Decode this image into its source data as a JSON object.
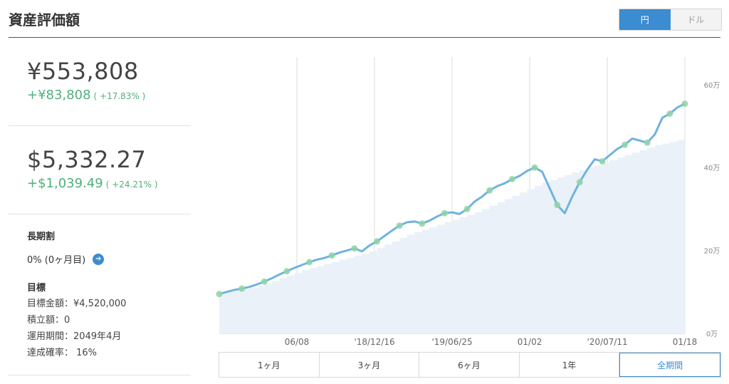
{
  "header": {
    "title": "資産評価額",
    "currency_options": [
      "円",
      "ドル"
    ],
    "active_currency": "円"
  },
  "jpy": {
    "value": "¥553,808",
    "gain": "+¥83,808",
    "gain_pct": "( +17.83% )"
  },
  "usd": {
    "value": "$5,332.27",
    "gain": "+$1,039.49",
    "gain_pct": "( +24.21% )"
  },
  "plan": {
    "long_term_heading": "長期割",
    "long_term_value": "0% (0ヶ月目)",
    "target_heading": "目標",
    "target_amount": "目標金額：¥4,520,000",
    "accumulation": "積立額：0",
    "period": "運用期間：2049年4月",
    "probability": "達成確率： 16%"
  },
  "range_tabs": [
    "1ヶ月",
    "3ヶ月",
    "6ヶ月",
    "1年",
    "全期間"
  ],
  "active_range": "全期間",
  "colors": {
    "accent": "#3b8cd0",
    "gain": "#4fb07a",
    "line": "#6fb3e0",
    "area": "#eaf1f9",
    "marker": "#8fd3a5"
  },
  "chart_data": {
    "type": "area",
    "x_ticks": [
      "06/08",
      "'18/12/16",
      "'19/06/25",
      "01/02",
      "'20/07/11",
      "01/18"
    ],
    "y_ticks": [
      "0万",
      "20万",
      "40万",
      "60万"
    ],
    "ylim": [
      0,
      600000
    ],
    "series": [
      {
        "name": "",
        "kind": "line",
        "values": [
          95000,
          100000,
          105000,
          108000,
          112000,
          118000,
          125000,
          133000,
          142000,
          150000,
          158000,
          165000,
          172000,
          178000,
          182000,
          188000,
          195000,
          200000,
          205000,
          198000,
          212000,
          222000,
          235000,
          248000,
          260000,
          268000,
          270000,
          265000,
          272000,
          282000,
          290000,
          292000,
          288000,
          300000,
          318000,
          330000,
          345000,
          355000,
          362000,
          372000,
          380000,
          392000,
          400000,
          390000,
          350000,
          310000,
          290000,
          330000,
          365000,
          395000,
          420000,
          415000,
          430000,
          445000,
          455000,
          470000,
          465000,
          460000,
          480000,
          520000,
          530000,
          545000,
          554000
        ]
      },
      {
        "name": "",
        "kind": "area",
        "values": [
          95000,
          100000,
          104000,
          107000,
          110000,
          114000,
          120000,
          126000,
          134000,
          140000,
          146000,
          152000,
          158000,
          162000,
          168000,
          172000,
          178000,
          182000,
          188000,
          192000,
          198000,
          206000,
          214000,
          222000,
          230000,
          238000,
          244000,
          250000,
          256000,
          262000,
          268000,
          274000,
          280000,
          286000,
          292000,
          300000,
          308000,
          316000,
          324000,
          332000,
          340000,
          348000,
          356000,
          364000,
          370000,
          376000,
          382000,
          388000,
          394000,
          400000,
          406000,
          412000,
          418000,
          424000,
          430000,
          436000,
          442000,
          448000,
          454000,
          458000,
          462000,
          466000,
          470000
        ]
      }
    ]
  }
}
